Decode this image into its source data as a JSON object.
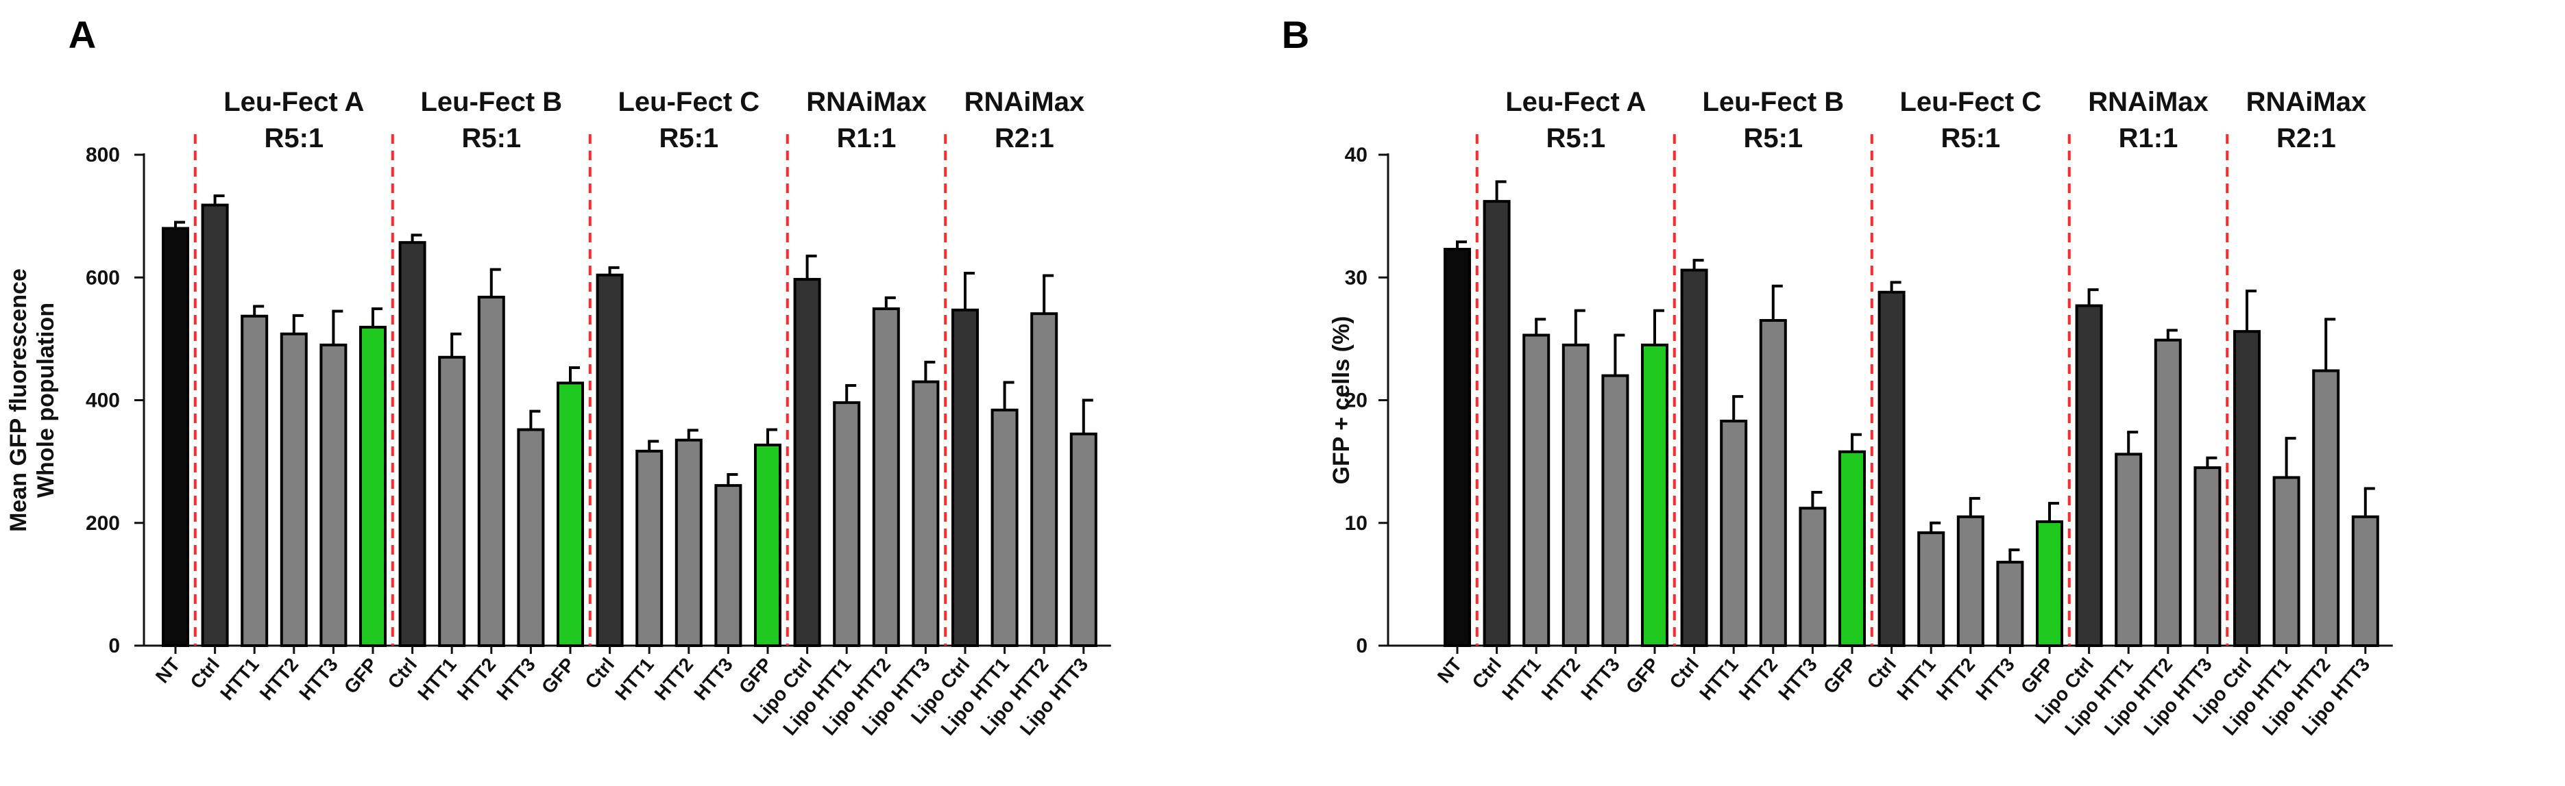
{
  "colors": {
    "black": "#0a0a0a",
    "dark": "#333333",
    "gray": "#808080",
    "green": "#1ec81e",
    "divider": "#ff2a2a",
    "axis": "#111111"
  },
  "chart_data": [
    {
      "type": "bar",
      "panel": "A",
      "ylabel": [
        "Mean GFP fluorescence",
        "Whole population"
      ],
      "ylim": [
        0,
        800
      ],
      "yticks": [
        0,
        200,
        400,
        600,
        800
      ],
      "groups": [
        {
          "name": [
            "Leu-Fect A",
            "R5:1"
          ],
          "start": 1,
          "end": 5
        },
        {
          "name": [
            "Leu-Fect B",
            "R5:1"
          ],
          "start": 6,
          "end": 10
        },
        {
          "name": [
            "Leu-Fect C",
            "R5:1"
          ],
          "start": 11,
          "end": 15
        },
        {
          "name": [
            "RNAiMax",
            "R1:1"
          ],
          "start": 16,
          "end": 19
        },
        {
          "name": [
            "RNAiMax",
            "R2:1"
          ],
          "start": 20,
          "end": 23
        }
      ],
      "categories": [
        "NT",
        "Ctrl",
        "HTT1",
        "HTT2",
        "HTT3",
        "GFP",
        "Ctrl",
        "HTT1",
        "HTT2",
        "HTT3",
        "GFP",
        "Ctrl",
        "HTT1",
        "HTT2",
        "HTT3",
        "GFP",
        "Lipo Ctrl",
        "Lipo HTT1",
        "Lipo HTT2",
        "Lipo HTT3",
        "Lipo Ctrl",
        "Lipo HTT1",
        "Lipo HTT2",
        "Lipo HTT3"
      ],
      "values": [
        680,
        718,
        537,
        508,
        490,
        519,
        657,
        470,
        568,
        352,
        428,
        604,
        317,
        335,
        261,
        327,
        597,
        396,
        549,
        430,
        547,
        384,
        541,
        345
      ],
      "errors": [
        10,
        15,
        16,
        30,
        55,
        30,
        12,
        38,
        45,
        30,
        25,
        12,
        16,
        16,
        18,
        25,
        38,
        28,
        18,
        32,
        60,
        45,
        62,
        55
      ],
      "bar_colors": [
        "black",
        "dark",
        "gray",
        "gray",
        "gray",
        "green",
        "dark",
        "gray",
        "gray",
        "gray",
        "green",
        "dark",
        "gray",
        "gray",
        "gray",
        "green",
        "dark",
        "gray",
        "gray",
        "gray",
        "dark",
        "gray",
        "gray",
        "gray"
      ]
    },
    {
      "type": "bar",
      "panel": "B",
      "ylabel": [
        "GFP + cells (%)"
      ],
      "ylim": [
        0,
        40
      ],
      "yticks": [
        0,
        10,
        20,
        30,
        40
      ],
      "groups": [
        {
          "name": [
            "Leu-Fect A",
            "R5:1"
          ],
          "start": 1,
          "end": 5
        },
        {
          "name": [
            "Leu-Fect B",
            "R5:1"
          ],
          "start": 6,
          "end": 10
        },
        {
          "name": [
            "Leu-Fect C",
            "R5:1"
          ],
          "start": 11,
          "end": 15
        },
        {
          "name": [
            "RNAiMax",
            "R1:1"
          ],
          "start": 16,
          "end": 19
        },
        {
          "name": [
            "RNAiMax",
            "R2:1"
          ],
          "start": 20,
          "end": 23
        }
      ],
      "categories": [
        "NT",
        "Ctrl",
        "HTT1",
        "HTT2",
        "HTT3",
        "GFP",
        "Ctrl",
        "HTT1",
        "HTT2",
        "HTT3",
        "GFP",
        "Ctrl",
        "HTT1",
        "HTT2",
        "HTT3",
        "GFP",
        "Lipo Ctrl",
        "Lipo HTT1",
        "Lipo HTT2",
        "Lipo HTT3",
        "Lipo Ctrl",
        "Lipo HTT1",
        "Lipo HTT2",
        "Lipo HTT3"
      ],
      "values": [
        32.3,
        36.2,
        25.3,
        24.5,
        22.0,
        24.5,
        30.6,
        18.3,
        26.5,
        11.2,
        15.8,
        28.8,
        9.2,
        10.5,
        6.8,
        10.1,
        27.7,
        15.6,
        24.9,
        14.5,
        25.6,
        13.7,
        22.4,
        10.5
      ],
      "errors": [
        0.6,
        1.6,
        1.3,
        2.8,
        3.3,
        2.8,
        0.8,
        2.0,
        2.8,
        1.3,
        1.4,
        0.8,
        0.8,
        1.5,
        1.0,
        1.5,
        1.3,
        1.8,
        0.8,
        0.8,
        3.3,
        3.2,
        4.2,
        2.3
      ],
      "bar_colors": [
        "black",
        "dark",
        "gray",
        "gray",
        "gray",
        "green",
        "dark",
        "gray",
        "gray",
        "gray",
        "green",
        "dark",
        "gray",
        "gray",
        "gray",
        "green",
        "dark",
        "gray",
        "gray",
        "gray",
        "dark",
        "gray",
        "gray",
        "gray"
      ]
    }
  ]
}
